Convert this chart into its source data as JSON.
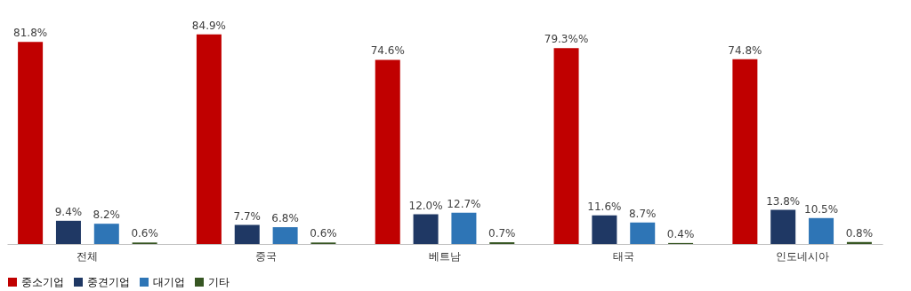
{
  "chart_data": {
    "type": "bar",
    "categories": [
      "전체",
      "중국",
      "베트남",
      "태국",
      "인도네시아"
    ],
    "series": [
      {
        "name": "중소기업",
        "color": "#c00000",
        "values": [
          81.8,
          84.9,
          74.6,
          79.3,
          74.8
        ],
        "value_labels": [
          "81.8%",
          "84.9%",
          "74.6%",
          "79.3%%",
          "74.8%"
        ]
      },
      {
        "name": "중견기업",
        "color": "#1f3864",
        "values": [
          9.4,
          7.7,
          12.0,
          11.6,
          13.8
        ],
        "value_labels": [
          "9.4%",
          "7.7%",
          "12.0%",
          "11.6%",
          "13.8%"
        ]
      },
      {
        "name": "대기업",
        "color": "#2e75b6",
        "values": [
          8.2,
          6.8,
          12.7,
          8.7,
          10.5
        ],
        "value_labels": [
          "8.2%",
          "6.8%",
          "12.7%",
          "8.7%",
          "10.5%"
        ]
      },
      {
        "name": "기타",
        "color": "#375623",
        "values": [
          0.6,
          0.6,
          0.7,
          0.4,
          0.8
        ],
        "value_labels": [
          "0.6%",
          "0.6%",
          "0.7%",
          "0.4%",
          "0.8%"
        ]
      }
    ],
    "grid": false,
    "legend": "bottom"
  }
}
